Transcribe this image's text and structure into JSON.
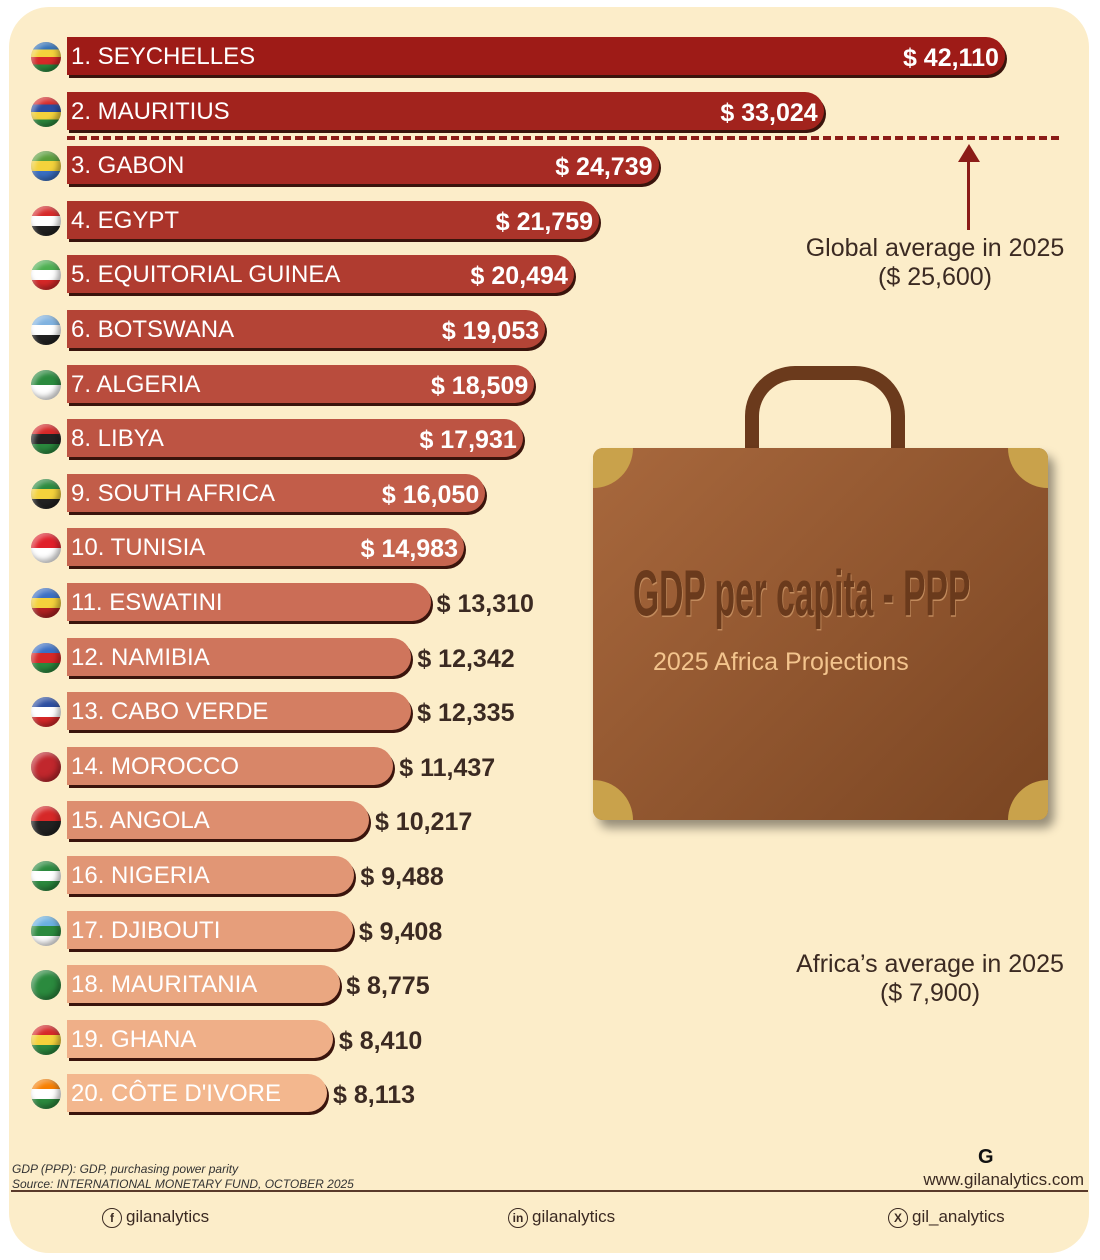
{
  "chart_data": {
    "type": "bar",
    "orientation": "horizontal",
    "unit": "$",
    "categories": [
      "1. SEYCHELLES",
      "2. MAURITIUS",
      "3. GABON",
      "4. EGYPT",
      "5. EQUITORIAL GUINEA",
      "6. BOTSWANA",
      "7. ALGERIA",
      "8. LIBYA",
      "9. SOUTH AFRICA",
      "10. TUNISIA",
      "11. ESWATINI",
      "12. NAMIBIA",
      "13. CABO VERDE",
      "14. MOROCCO",
      "15. ANGOLA",
      "16. NIGERIA",
      "17. DJIBOUTI",
      "18. MAURITANIA",
      "19. GHANA",
      "20. CÔTE D'IVORE"
    ],
    "values": [
      42110,
      33024,
      24739,
      21759,
      20494,
      19053,
      18509,
      17931,
      16050,
      14983,
      13310,
      12342,
      12335,
      11437,
      10217,
      9488,
      9408,
      8775,
      8410,
      8113
    ],
    "value_labels": [
      "$ 42,110",
      "$ 33,024",
      "$ 24,739",
      "$ 21,759",
      "$ 20,494",
      "$ 19,053",
      "$ 18,509",
      "$ 17,931",
      "$ 16,050",
      "$ 14,983",
      "$ 13,310",
      "$ 12,342",
      "$ 12,335",
      "$ 11,437",
      "$ 10,217",
      "$ 9,488",
      "$ 9,408",
      "$ 8,775",
      "$ 8,410",
      "$ 8,113"
    ],
    "flag_colors": [
      [
        "#2e6eb5",
        "#f4d23c",
        "#d62828",
        "#2b8a3e"
      ],
      [
        "#d62828",
        "#2b4da0",
        "#f4d23c",
        "#2b8a3e"
      ],
      [
        "#5a9e3a",
        "#f4d23c",
        "#3a6fc4"
      ],
      [
        "#d62828",
        "#ffffff",
        "#222222"
      ],
      [
        "#4caf50",
        "#ffffff",
        "#d62828"
      ],
      [
        "#7fb2e0",
        "#ffffff",
        "#222222"
      ],
      [
        "#2b8a3e",
        "#ffffff"
      ],
      [
        "#d62828",
        "#222222",
        "#2b8a3e"
      ],
      [
        "#2b8a3e",
        "#f4d23c",
        "#222222"
      ],
      [
        "#e0202a",
        "#ffffff"
      ],
      [
        "#3a6fc4",
        "#f4d23c",
        "#b22222"
      ],
      [
        "#3a6fc4",
        "#d62828",
        "#2b8a3e"
      ],
      [
        "#2b4da0",
        "#ffffff",
        "#d62828"
      ],
      [
        "#c1272d",
        "#c1272d"
      ],
      [
        "#d62828",
        "#222222"
      ],
      [
        "#2b8a3e",
        "#ffffff",
        "#2b8a3e"
      ],
      [
        "#6ab0e0",
        "#2b8a3e",
        "#ffffff"
      ],
      [
        "#2b8a3e",
        "#2b8a3e"
      ],
      [
        "#d62828",
        "#f4d23c",
        "#2b8a3e"
      ],
      [
        "#f77f00",
        "#ffffff",
        "#2b8a3e"
      ]
    ],
    "bar_color_range": [
      "#9e1b17",
      "#f3b78e"
    ],
    "reference_lines": [
      {
        "label": "Global average in 2025",
        "value_label": "($ 25,600)",
        "value": 25600
      }
    ]
  },
  "notes": {
    "global_title": "Global average in 2025",
    "global_value": "($ 25,600)",
    "africa_title": "Africa’s average in 2025",
    "africa_value": "($ 7,900)"
  },
  "case": {
    "title": "GDP per capita - PPP",
    "subtitle": "2025 Africa Projections"
  },
  "footer": {
    "definition": "GDP (PPP): GDP, purchasing power parity",
    "source": "Source: INTERNATIONAL MONETARY FUND, OCTOBER 2025",
    "site": "www.gilanalytics.com",
    "logo": "G",
    "facebook": "gilanalytics",
    "linkedin": "gilanalytics",
    "x": "gil_analytics"
  }
}
